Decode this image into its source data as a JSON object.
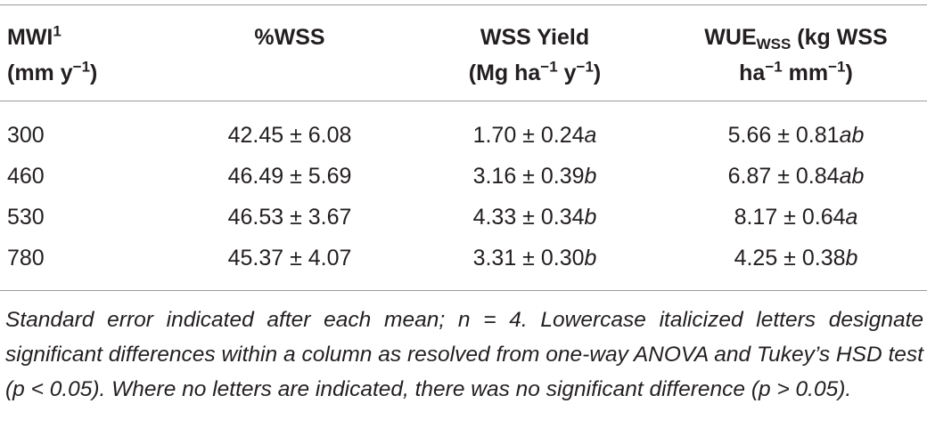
{
  "header": [
    {
      "lines": [
        [
          {
            "text": "MWI"
          },
          {
            "sup": "1"
          }
        ],
        [
          {
            "text": "(mm y"
          },
          {
            "sup": "−1"
          },
          {
            "text": ")"
          }
        ]
      ]
    },
    {
      "lines": [
        [
          {
            "text": "%WSS"
          }
        ]
      ]
    },
    {
      "lines": [
        [
          {
            "text": "WSS Yield"
          }
        ],
        [
          {
            "text": "(Mg ha"
          },
          {
            "sup": "−1"
          },
          {
            "text": " y"
          },
          {
            "sup": "−1"
          },
          {
            "text": ")"
          }
        ]
      ]
    },
    {
      "lines": [
        [
          {
            "text": "WUE"
          },
          {
            "sub": "WSS"
          },
          {
            "text": " (kg WSS"
          }
        ],
        [
          {
            "text": "ha"
          },
          {
            "sup": "−1"
          },
          {
            "text": " mm"
          },
          {
            "sup": "−1"
          },
          {
            "text": ")"
          }
        ]
      ]
    }
  ],
  "rows": [
    [
      "300",
      "42.45 ± 6.08",
      {
        "text": "1.70 ± 0.24",
        "letter": "a"
      },
      {
        "text": "5.66 ± 0.81",
        "letter": "ab"
      }
    ],
    [
      "460",
      "46.49 ± 5.69",
      {
        "text": "3.16 ± 0.39",
        "letter": "b"
      },
      {
        "text": "6.87 ± 0.84",
        "letter": "ab"
      }
    ],
    [
      "530",
      "46.53 ± 3.67",
      {
        "text": "4.33 ± 0.34",
        "letter": "b"
      },
      {
        "text": "8.17 ± 0.64",
        "letter": "a"
      }
    ],
    [
      "780",
      "45.37 ± 4.07",
      {
        "text": "3.31 ± 0.30",
        "letter": "b"
      },
      {
        "text": "4.25 ± 0.38",
        "letter": "b"
      }
    ]
  ],
  "footnote": "Standard error indicated after each mean; n = 4. Lowercase italicized letters designate significant differences within a column as resolved from one-way ANOVA and Tukey’s HSD test (p < 0.05). Where no letters are indicated, there was no significant difference (p > 0.05)."
}
